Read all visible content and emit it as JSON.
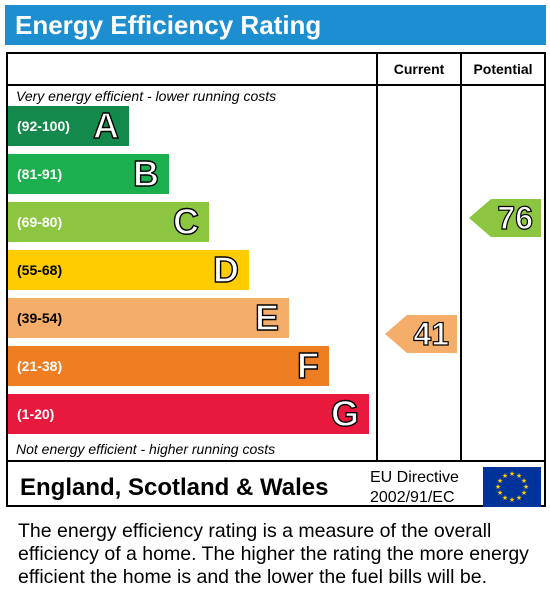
{
  "title": "Energy Efficiency Rating",
  "columns": {
    "current": "Current",
    "potential": "Potential"
  },
  "notes": {
    "top": "Very energy efficient - lower running costs",
    "bottom": "Not energy efficient - higher running costs"
  },
  "bands": [
    {
      "range": "(92-100)",
      "letter": "A",
      "color": "#138a4c"
    },
    {
      "range": "(81-91)",
      "letter": "B",
      "color": "#1bb04d"
    },
    {
      "range": "(69-80)",
      "letter": "C",
      "color": "#8cc640"
    },
    {
      "range": "(55-68)",
      "letter": "D",
      "color": "#ffcc00"
    },
    {
      "range": "(39-54)",
      "letter": "E",
      "color": "#f5ad6a"
    },
    {
      "range": "(21-38)",
      "letter": "F",
      "color": "#ef7d22"
    },
    {
      "range": "(1-20)",
      "letter": "G",
      "color": "#e8193c"
    }
  ],
  "ratings": {
    "current": {
      "value": "41",
      "band": "E",
      "color": "#f5ad6a"
    },
    "potential": {
      "value": "76",
      "band": "C",
      "color": "#8cc640"
    }
  },
  "footer": {
    "region": "England, Scotland & Wales",
    "directive_line1": "EU Directive",
    "directive_line2": "2002/91/EC",
    "flag_icon": "eu-flag-icon"
  },
  "description": "The energy efficiency rating is a measure of the overall efficiency of a home. The higher the rating the more energy efficient the home is and the lower the fuel bills will be."
}
